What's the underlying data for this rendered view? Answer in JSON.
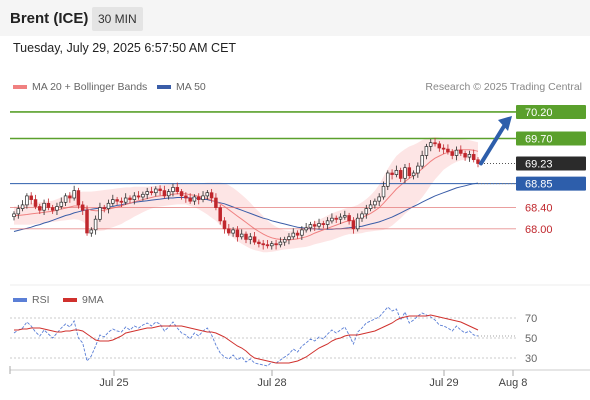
{
  "header": {
    "instrument": "Brent (ICE)",
    "timeframe": "30 MIN",
    "datetime": "Tuesday, July 29, 2025 6:57:50 AM CET"
  },
  "legend": {
    "ma20_label": "MA 20 + Bollinger Bands",
    "ma50_label": "MA 50",
    "attribution": "Research © 2025 Trading Central",
    "rsi_label": "RSI",
    "rsi9_label": "9MA"
  },
  "colors": {
    "candle_up": "#2a2a2a",
    "candle_down": "#c0272d",
    "ma20": "#f08080",
    "band_fill": "#fde0e0",
    "ma50": "#3a5da8",
    "resistance": "#5aa02c",
    "support": "#2d5eab",
    "level_red": "#e06c6c",
    "current": "#2b2b2b",
    "arrow": "#2d5eab",
    "rsi": "#5b7fd6",
    "rsi_ma": "#d0312d"
  },
  "chart_data": {
    "type": "candlestick",
    "ylim": [
      67.3,
      70.5
    ],
    "x_ticks": [
      "Jul 25",
      "Jul 28",
      "Jul 29",
      "Aug 8"
    ],
    "levels": [
      {
        "value": 70.2,
        "label": "70.20",
        "kind": "resistance"
      },
      {
        "value": 69.7,
        "label": "69.70",
        "kind": "resistance"
      },
      {
        "value": 69.23,
        "label": "69.23",
        "kind": "current"
      },
      {
        "value": 68.85,
        "label": "68.85",
        "kind": "support"
      },
      {
        "value": 68.4,
        "label": "68.40",
        "kind": "level"
      },
      {
        "value": 68.0,
        "label": "68.00",
        "kind": "level"
      }
    ],
    "closes": [
      68.28,
      68.38,
      68.45,
      68.62,
      68.55,
      68.42,
      68.35,
      68.48,
      68.4,
      68.35,
      68.42,
      68.5,
      68.62,
      68.58,
      68.72,
      68.45,
      68.35,
      67.92,
      67.98,
      68.18,
      68.4,
      68.38,
      68.48,
      68.55,
      68.52,
      68.5,
      68.58,
      68.55,
      68.62,
      68.6,
      68.65,
      68.7,
      68.68,
      68.75,
      68.72,
      68.62,
      68.7,
      68.78,
      68.7,
      68.62,
      68.58,
      68.52,
      68.6,
      68.55,
      68.62,
      68.68,
      68.58,
      68.4,
      68.15,
      68.0,
      67.92,
      67.98,
      67.85,
      67.9,
      67.8,
      67.85,
      67.75,
      67.72,
      67.7,
      67.68,
      67.72,
      67.7,
      67.75,
      67.8,
      67.85,
      67.92,
      67.88,
      67.98,
      68.02,
      68.08,
      68.05,
      68.1,
      68.08,
      68.15,
      68.2,
      68.18,
      68.22,
      68.25,
      68.15,
      68.0,
      68.2,
      68.28,
      68.38,
      68.45,
      68.52,
      68.6,
      68.8,
      69.05,
      69.02,
      69.1,
      68.95,
      69.15,
      69.0,
      69.05,
      69.18,
      69.38,
      69.55,
      69.62,
      69.6,
      69.52,
      69.5,
      69.45,
      69.38,
      69.48,
      69.42,
      69.35,
      69.4,
      69.3,
      69.23
    ],
    "ma20": [
      68.25,
      68.25,
      68.26,
      68.27,
      68.28,
      68.29,
      68.3,
      68.31,
      68.32,
      68.33,
      68.35,
      68.37,
      68.39,
      68.41,
      68.43,
      68.43,
      68.42,
      68.38,
      68.35,
      68.34,
      68.34,
      68.35,
      68.37,
      68.39,
      68.41,
      68.43,
      68.46,
      68.48,
      68.51,
      68.53,
      68.55,
      68.57,
      68.59,
      68.61,
      68.62,
      68.63,
      68.64,
      68.65,
      68.66,
      68.66,
      68.66,
      68.64,
      68.63,
      68.61,
      68.59,
      68.57,
      68.54,
      68.51,
      68.47,
      68.42,
      68.36,
      68.3,
      68.24,
      68.18,
      68.12,
      68.06,
      68.0,
      67.95,
      67.9,
      67.86,
      67.83,
      67.81,
      67.8,
      67.79,
      67.79,
      67.8,
      67.81,
      67.83,
      67.85,
      67.88,
      67.92,
      67.95,
      67.98,
      68.01,
      68.04,
      68.07,
      68.1,
      68.13,
      68.15,
      68.16,
      68.18,
      68.21,
      68.25,
      68.29,
      68.34,
      68.4,
      68.48,
      68.57,
      68.66,
      68.75,
      68.82,
      68.89,
      68.95,
      69.0,
      69.06,
      69.13,
      69.2,
      69.27,
      69.33,
      69.37,
      69.41,
      69.44,
      69.46,
      69.48,
      69.49,
      69.49,
      69.49,
      69.48,
      69.46
    ],
    "band_width": [
      0.17,
      0.17,
      0.18,
      0.19,
      0.2,
      0.2,
      0.2,
      0.2,
      0.2,
      0.2,
      0.21,
      0.22,
      0.23,
      0.24,
      0.25,
      0.26,
      0.28,
      0.32,
      0.35,
      0.37,
      0.38,
      0.38,
      0.37,
      0.36,
      0.35,
      0.34,
      0.32,
      0.3,
      0.28,
      0.26,
      0.24,
      0.22,
      0.21,
      0.2,
      0.2,
      0.2,
      0.2,
      0.2,
      0.2,
      0.2,
      0.2,
      0.21,
      0.22,
      0.24,
      0.27,
      0.3,
      0.33,
      0.36,
      0.4,
      0.44,
      0.46,
      0.47,
      0.47,
      0.46,
      0.45,
      0.43,
      0.4,
      0.37,
      0.34,
      0.3,
      0.26,
      0.23,
      0.2,
      0.18,
      0.17,
      0.17,
      0.17,
      0.18,
      0.19,
      0.2,
      0.21,
      0.22,
      0.23,
      0.24,
      0.25,
      0.25,
      0.25,
      0.25,
      0.25,
      0.26,
      0.27,
      0.29,
      0.31,
      0.34,
      0.38,
      0.43,
      0.5,
      0.56,
      0.6,
      0.62,
      0.62,
      0.61,
      0.6,
      0.58,
      0.56,
      0.54,
      0.5,
      0.45,
      0.4,
      0.35,
      0.3,
      0.27,
      0.24,
      0.22,
      0.2,
      0.19,
      0.18,
      0.17,
      0.17
    ],
    "ma50": [
      67.95,
      67.97,
      67.99,
      68.01,
      68.03,
      68.06,
      68.08,
      68.11,
      68.13,
      68.16,
      68.19,
      68.22,
      68.25,
      68.27,
      68.3,
      68.32,
      68.34,
      68.36,
      68.37,
      68.38,
      68.39,
      68.4,
      68.41,
      68.42,
      68.44,
      68.45,
      68.47,
      68.48,
      68.5,
      68.51,
      68.52,
      68.53,
      68.54,
      68.55,
      68.56,
      68.57,
      68.58,
      68.58,
      68.59,
      68.59,
      68.59,
      68.58,
      68.58,
      68.57,
      68.56,
      68.55,
      68.53,
      68.51,
      68.49,
      68.47,
      68.44,
      68.41,
      68.38,
      68.35,
      68.32,
      68.29,
      68.26,
      68.23,
      68.2,
      68.18,
      68.15,
      68.13,
      68.11,
      68.09,
      68.07,
      68.05,
      68.03,
      68.02,
      68.01,
      68.0,
      68.0,
      67.99,
      67.99,
      67.99,
      67.99,
      68.0,
      68.0,
      68.01,
      68.02,
      68.03,
      68.04,
      68.05,
      68.07,
      68.09,
      68.11,
      68.13,
      68.16,
      68.19,
      68.22,
      68.26,
      68.3,
      68.34,
      68.38,
      68.42,
      68.46,
      68.5,
      68.54,
      68.58,
      68.62,
      68.65,
      68.68,
      68.71,
      68.74,
      68.77,
      68.79,
      68.81,
      68.83,
      68.85,
      68.86
    ],
    "rsi": {
      "ylim": [
        20,
        80
      ],
      "ticks": [
        70,
        50,
        30
      ],
      "values": [
        55,
        58,
        60,
        66,
        62,
        56,
        52,
        58,
        54,
        50,
        55,
        60,
        64,
        61,
        67,
        50,
        45,
        27,
        32,
        42,
        53,
        51,
        56,
        59,
        57,
        56,
        61,
        58,
        62,
        60,
        63,
        65,
        62,
        66,
        64,
        57,
        61,
        66,
        60,
        55,
        53,
        49,
        55,
        52,
        57,
        60,
        53,
        43,
        35,
        31,
        29,
        33,
        28,
        31,
        26,
        29,
        25,
        24,
        23,
        22,
        26,
        25,
        28,
        31,
        34,
        39,
        36,
        42,
        45,
        49,
        47,
        51,
        49,
        54,
        58,
        55,
        58,
        61,
        53,
        44,
        56,
        60,
        65,
        67,
        69,
        71,
        76,
        81,
        77,
        79,
        68,
        76,
        65,
        68,
        72,
        75,
        73,
        71,
        68,
        63,
        62,
        60,
        57,
        62,
        58,
        55,
        57,
        53,
        52
      ],
      "ma9": [
        58,
        58,
        59,
        59,
        60,
        60,
        60,
        59,
        58,
        57,
        56,
        56,
        57,
        57,
        58,
        58,
        57,
        54,
        51,
        48,
        47,
        47,
        47,
        48,
        50,
        52,
        55,
        56,
        57,
        58,
        59,
        60,
        60,
        61,
        62,
        62,
        62,
        62,
        62,
        62,
        61,
        60,
        59,
        58,
        57,
        56,
        56,
        55,
        53,
        51,
        48,
        45,
        42,
        40,
        37,
        33,
        30,
        29,
        28,
        27,
        26,
        25,
        25,
        25,
        25,
        26,
        27,
        29,
        31,
        34,
        37,
        40,
        42,
        44,
        47,
        49,
        50,
        52,
        53,
        53,
        53,
        54,
        55,
        56,
        57,
        59,
        61,
        63,
        65,
        68,
        70,
        71,
        72,
        72,
        72,
        72,
        72,
        73,
        72,
        71,
        70,
        69,
        68,
        67,
        66,
        64,
        62,
        60,
        58
      ]
    }
  },
  "axis_labels": {
    "levels": [
      "70.20",
      "69.70",
      "69.23",
      "68.85",
      "68.40",
      "68.00"
    ],
    "rsi_ticks": [
      "70",
      "50",
      "30"
    ],
    "x_ticks": [
      "Jul 25",
      "Jul 28",
      "Jul 29",
      "Aug 8"
    ]
  }
}
